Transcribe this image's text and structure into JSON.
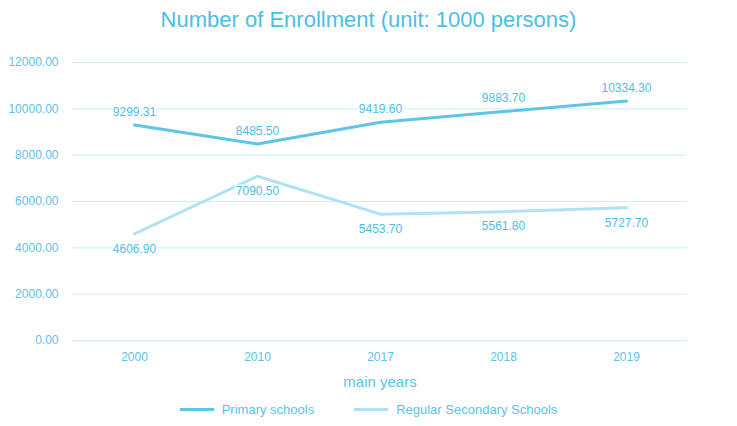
{
  "chart_data": {
    "type": "line",
    "title": "Number of Enrollment (unit: 1000 persons)",
    "x_label": "main years",
    "categories": [
      "2000",
      "2010",
      "2017",
      "2018",
      "2019"
    ],
    "series": [
      {
        "name": "Primary schools",
        "color": "#5ec4e8",
        "values": [
          9299.31,
          8485.5,
          9419.6,
          9883.7,
          10334.3
        ],
        "value_labels": [
          "9299.31",
          "8485.50",
          "9419.60",
          "9883.70",
          "10334.30"
        ]
      },
      {
        "name": "Regular Secondary Schools",
        "color": "#b0e2f4",
        "values": [
          4606.9,
          7090.5,
          5453.7,
          5561.8,
          5727.7
        ],
        "value_labels": [
          "4606.90",
          "7090.50",
          "5453.70",
          "5561.80",
          "5727.70"
        ]
      }
    ],
    "ylim": [
      0,
      12000
    ],
    "yticks": [
      {
        "value": 0,
        "label": "0.00"
      },
      {
        "value": 2000,
        "label": "2000.00"
      },
      {
        "value": 4000,
        "label": "4000.00"
      },
      {
        "value": 6000,
        "label": "6000.00"
      },
      {
        "value": 8000,
        "label": "8000.00"
      },
      {
        "value": 10000,
        "label": "10000.00"
      },
      {
        "value": 12000,
        "label": "12000.00"
      }
    ],
    "grid": true,
    "data_labels": true,
    "legend": "bottom"
  }
}
